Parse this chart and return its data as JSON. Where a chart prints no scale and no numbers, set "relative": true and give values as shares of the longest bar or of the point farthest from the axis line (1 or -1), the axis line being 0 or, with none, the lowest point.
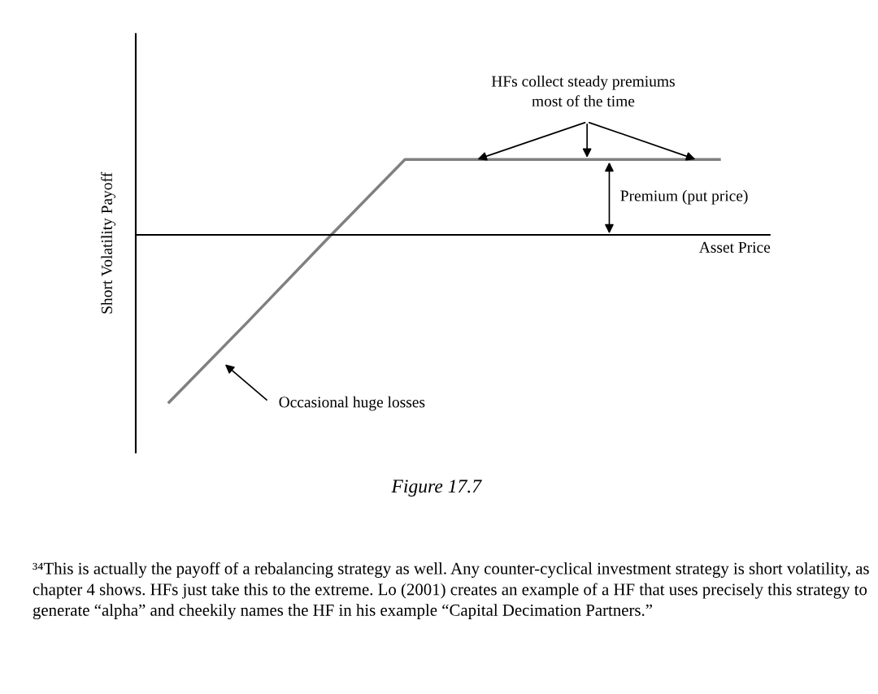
{
  "chart_data": {
    "type": "line",
    "relative": true,
    "ylabel": "Short Volatility Payoff",
    "xlabel": "Asset Price",
    "categories": [
      null,
      null,
      null,
      null,
      null,
      null,
      null,
      null
    ],
    "series": [
      {
        "color": "#808080",
        "values": [
          -1,
          -0.52,
          -0.03,
          0.45,
          0.45,
          0.45,
          0.45,
          0.45
        ]
      }
    ],
    "marker": "none",
    "line_style": "solid",
    "annotations": [
      "HFs collect steady premiums\nmost of the time",
      "Premium (put price)",
      "Occasional huge losses",
      "Figure 17.7",
      "³⁴This is actually the payoff of a rebalancing strategy as well. Any counter-cyclical investment strategy is short volatility, as chapter 4 shows. HFs just take this to the extreme. Lo (2001) creates an example of a HF that uses precisely this strategy to generate “alpha” and cheekily names the HF in his example “Capital Decimation Partners.”"
    ]
  }
}
